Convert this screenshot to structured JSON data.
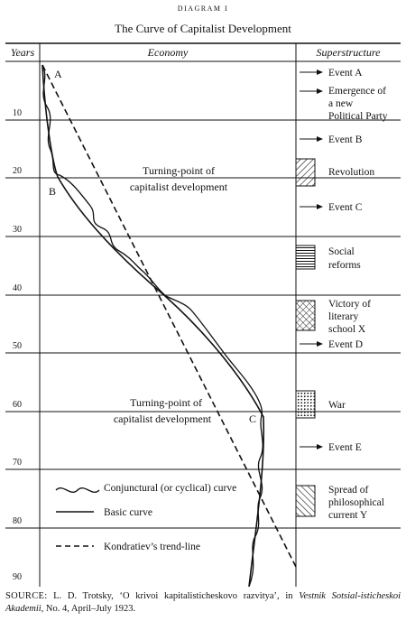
{
  "diagram_label": "DIAGRAM I",
  "title": "The Curve of Capitalist Development",
  "headers": {
    "years": "Years",
    "economy": "Economy",
    "superstructure": "Superstructure"
  },
  "year_ticks": [
    "10",
    "20",
    "30",
    "40",
    "50",
    "60",
    "70",
    "80",
    "90"
  ],
  "point_labels": {
    "a": "A",
    "b": "B",
    "c": "C"
  },
  "turning_point_1": [
    "Turning-point of",
    "capitalist development"
  ],
  "turning_point_2": [
    "Turning-point of",
    "capitalist development"
  ],
  "events": {
    "event_a": [
      "Event A"
    ],
    "party": [
      "Emergence of",
      "a new",
      "Political Party"
    ],
    "event_b": [
      "Event B"
    ],
    "revolution": [
      "Revolution"
    ],
    "event_c": [
      "Event C"
    ],
    "reforms": [
      "Social",
      "reforms"
    ],
    "victory": [
      "Victory of",
      "literary",
      "school X"
    ],
    "event_d": [
      "Event D"
    ],
    "war": [
      "War"
    ],
    "event_e": [
      "Event E"
    ],
    "spread": [
      "Spread of",
      "philosophical",
      "current Y"
    ]
  },
  "legend": {
    "conjunctural": "Conjunctural (or cyclical) curve",
    "basic": "Basic curve",
    "trend": "Kondratiev’s trend-line"
  },
  "source": {
    "label": "SOURCE:",
    "text": "L. D. Trotsky, ‘O krivoi kapitalisticheskovo razvitya’, in",
    "journal": "Vestnik Sotsial-isticheskoi Akademii",
    "rest": ", No. 4, April–July 1923."
  }
}
